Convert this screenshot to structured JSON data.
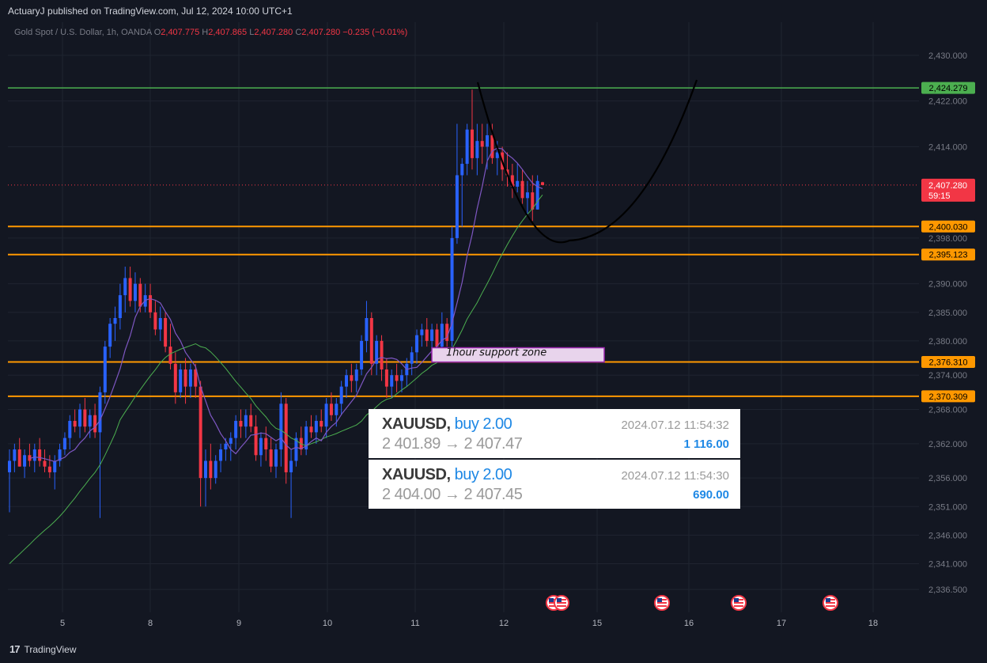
{
  "header": {
    "published_text": "ActuaryJ published on TradingView.com, Jul 12, 2024 10:00 UTC+1"
  },
  "legend": {
    "symbol": "Gold Spot / U.S. Dollar, 1h, OANDA",
    "o_key": "O",
    "o_val": "2,407.775",
    "h_key": "H",
    "h_val": "2,407.865",
    "l_key": "L",
    "l_val": "2,407.280",
    "c_key": "C",
    "c_val": "2,407.280",
    "change": "−0.235 (−0.01%)"
  },
  "footer": {
    "brand": "TradingView"
  },
  "trades": [
    {
      "symbol": "XAUUSD,",
      "side": "buy 2.00",
      "prices": "2 401.89 → 2 407.47",
      "timestamp": "2024.07.12 11:54:32",
      "profit": "1 116.00"
    },
    {
      "symbol": "XAUUSD,",
      "side": "buy 2.00",
      "prices": "2 404.00 → 2 407.45",
      "timestamp": "2024.07.12 11:54:30",
      "profit": "690.00"
    }
  ],
  "colors": {
    "background": "#131722",
    "up": "#2962ff",
    "down": "#f23645",
    "orange_level": "#ff9800",
    "green_level": "#4caf50",
    "ma_fast": "#7e57c2",
    "ma_slow": "#4caf50",
    "grid": "#1f2430"
  },
  "chart_data": {
    "type": "candlestick",
    "title": "Gold Spot / U.S. Dollar, 1h, OANDA",
    "xlabel": "",
    "ylabel": "",
    "ylim": [
      2334,
      2437
    ],
    "y_ticks": [
      "2,430.000",
      "2,422.000",
      "2,414.000",
      "2,398.000",
      "2,390.000",
      "2,385.000",
      "2,380.000",
      "2,374.000",
      "2,368.000",
      "2,362.000",
      "2,356.000",
      "2,351.000",
      "2,346.000",
      "2,341.000",
      "2,336.500"
    ],
    "x_ticks": [
      "5",
      "8",
      "9",
      "10",
      "11",
      "12",
      "15",
      "16",
      "17",
      "18"
    ],
    "levels": [
      {
        "label": "2,424.279",
        "value": 2424.279,
        "color": "#4caf50"
      },
      {
        "label": "2,400.030",
        "value": 2400.03,
        "color": "#ff9800"
      },
      {
        "label": "2,395.123",
        "value": 2395.123,
        "color": "#ff9800"
      },
      {
        "label": "2,376.310",
        "value": 2376.31,
        "color": "#ff9800"
      },
      {
        "label": "2,370.309",
        "value": 2370.309,
        "color": "#ff9800"
      }
    ],
    "last_price": {
      "label": "2,407.280",
      "value": 2407.28,
      "countdown": "59:15"
    },
    "support_zone": {
      "label": "1hour support zone",
      "low": 2376.3,
      "high": 2378.8
    },
    "candles": [
      {
        "o": 2357,
        "h": 2361,
        "l": 2350,
        "c": 2359
      },
      {
        "o": 2359,
        "h": 2362,
        "l": 2357,
        "c": 2361
      },
      {
        "o": 2361,
        "h": 2363,
        "l": 2358,
        "c": 2358
      },
      {
        "o": 2358,
        "h": 2361,
        "l": 2356,
        "c": 2360
      },
      {
        "o": 2360,
        "h": 2362,
        "l": 2358,
        "c": 2359
      },
      {
        "o": 2359,
        "h": 2362,
        "l": 2357,
        "c": 2361
      },
      {
        "o": 2361,
        "h": 2363,
        "l": 2358,
        "c": 2359
      },
      {
        "o": 2359,
        "h": 2361,
        "l": 2357,
        "c": 2358
      },
      {
        "o": 2358,
        "h": 2360,
        "l": 2356,
        "c": 2357
      },
      {
        "o": 2357,
        "h": 2360,
        "l": 2354,
        "c": 2359
      },
      {
        "o": 2359,
        "h": 2362,
        "l": 2358,
        "c": 2361
      },
      {
        "o": 2361,
        "h": 2364,
        "l": 2360,
        "c": 2363
      },
      {
        "o": 2363,
        "h": 2367,
        "l": 2361,
        "c": 2366
      },
      {
        "o": 2366,
        "h": 2368,
        "l": 2364,
        "c": 2365
      },
      {
        "o": 2365,
        "h": 2369,
        "l": 2363,
        "c": 2368
      },
      {
        "o": 2368,
        "h": 2370,
        "l": 2364,
        "c": 2365
      },
      {
        "o": 2365,
        "h": 2368,
        "l": 2363,
        "c": 2367
      },
      {
        "o": 2367,
        "h": 2369,
        "l": 2363,
        "c": 2364
      },
      {
        "o": 2364,
        "h": 2372,
        "l": 2349,
        "c": 2371
      },
      {
        "o": 2371,
        "h": 2380,
        "l": 2369,
        "c": 2379
      },
      {
        "o": 2379,
        "h": 2384,
        "l": 2377,
        "c": 2383
      },
      {
        "o": 2383,
        "h": 2386,
        "l": 2380,
        "c": 2384
      },
      {
        "o": 2384,
        "h": 2390,
        "l": 2382,
        "c": 2388
      },
      {
        "o": 2388,
        "h": 2393,
        "l": 2385,
        "c": 2391
      },
      {
        "o": 2391,
        "h": 2393,
        "l": 2386,
        "c": 2387
      },
      {
        "o": 2387,
        "h": 2392,
        "l": 2385,
        "c": 2390
      },
      {
        "o": 2390,
        "h": 2391,
        "l": 2385,
        "c": 2386
      },
      {
        "o": 2386,
        "h": 2390,
        "l": 2385,
        "c": 2388
      },
      {
        "o": 2388,
        "h": 2390,
        "l": 2384,
        "c": 2385
      },
      {
        "o": 2385,
        "h": 2387,
        "l": 2381,
        "c": 2382
      },
      {
        "o": 2382,
        "h": 2386,
        "l": 2380,
        "c": 2384
      },
      {
        "o": 2384,
        "h": 2385,
        "l": 2378,
        "c": 2379
      },
      {
        "o": 2379,
        "h": 2383,
        "l": 2375,
        "c": 2376
      },
      {
        "o": 2376,
        "h": 2378,
        "l": 2369,
        "c": 2371
      },
      {
        "o": 2371,
        "h": 2376,
        "l": 2370,
        "c": 2375
      },
      {
        "o": 2375,
        "h": 2377,
        "l": 2369,
        "c": 2372
      },
      {
        "o": 2372,
        "h": 2376,
        "l": 2370,
        "c": 2375
      },
      {
        "o": 2375,
        "h": 2376,
        "l": 2370,
        "c": 2372
      },
      {
        "o": 2372,
        "h": 2373,
        "l": 2351,
        "c": 2356
      },
      {
        "o": 2356,
        "h": 2361,
        "l": 2351,
        "c": 2359
      },
      {
        "o": 2359,
        "h": 2362,
        "l": 2354,
        "c": 2356
      },
      {
        "o": 2356,
        "h": 2360,
        "l": 2355,
        "c": 2359
      },
      {
        "o": 2359,
        "h": 2362,
        "l": 2357,
        "c": 2361
      },
      {
        "o": 2361,
        "h": 2363,
        "l": 2359,
        "c": 2362
      },
      {
        "o": 2362,
        "h": 2364,
        "l": 2359,
        "c": 2363
      },
      {
        "o": 2363,
        "h": 2367,
        "l": 2361,
        "c": 2366
      },
      {
        "o": 2366,
        "h": 2368,
        "l": 2363,
        "c": 2365
      },
      {
        "o": 2365,
        "h": 2368,
        "l": 2363,
        "c": 2367
      },
      {
        "o": 2367,
        "h": 2369,
        "l": 2364,
        "c": 2365
      },
      {
        "o": 2365,
        "h": 2367,
        "l": 2359,
        "c": 2360
      },
      {
        "o": 2360,
        "h": 2364,
        "l": 2358,
        "c": 2363
      },
      {
        "o": 2363,
        "h": 2365,
        "l": 2359,
        "c": 2361
      },
      {
        "o": 2361,
        "h": 2363,
        "l": 2357,
        "c": 2358
      },
      {
        "o": 2358,
        "h": 2362,
        "l": 2356,
        "c": 2361
      },
      {
        "o": 2361,
        "h": 2371,
        "l": 2358,
        "c": 2369
      },
      {
        "o": 2369,
        "h": 2370,
        "l": 2355,
        "c": 2357
      },
      {
        "o": 2357,
        "h": 2361,
        "l": 2349,
        "c": 2359
      },
      {
        "o": 2359,
        "h": 2364,
        "l": 2358,
        "c": 2363
      },
      {
        "o": 2363,
        "h": 2365,
        "l": 2360,
        "c": 2361
      },
      {
        "o": 2361,
        "h": 2366,
        "l": 2360,
        "c": 2365
      },
      {
        "o": 2365,
        "h": 2367,
        "l": 2363,
        "c": 2364
      },
      {
        "o": 2364,
        "h": 2367,
        "l": 2362,
        "c": 2366
      },
      {
        "o": 2366,
        "h": 2368,
        "l": 2364,
        "c": 2365
      },
      {
        "o": 2365,
        "h": 2370,
        "l": 2363,
        "c": 2369
      },
      {
        "o": 2369,
        "h": 2371,
        "l": 2366,
        "c": 2367
      },
      {
        "o": 2367,
        "h": 2370,
        "l": 2365,
        "c": 2369
      },
      {
        "o": 2369,
        "h": 2373,
        "l": 2367,
        "c": 2372
      },
      {
        "o": 2372,
        "h": 2375,
        "l": 2370,
        "c": 2374
      },
      {
        "o": 2374,
        "h": 2376,
        "l": 2371,
        "c": 2373
      },
      {
        "o": 2373,
        "h": 2376,
        "l": 2371,
        "c": 2375
      },
      {
        "o": 2375,
        "h": 2381,
        "l": 2374,
        "c": 2380
      },
      {
        "o": 2380,
        "h": 2387,
        "l": 2378,
        "c": 2384
      },
      {
        "o": 2384,
        "h": 2385,
        "l": 2374,
        "c": 2376
      },
      {
        "o": 2376,
        "h": 2381,
        "l": 2374,
        "c": 2380
      },
      {
        "o": 2380,
        "h": 2381,
        "l": 2373,
        "c": 2375
      },
      {
        "o": 2375,
        "h": 2377,
        "l": 2370,
        "c": 2372
      },
      {
        "o": 2372,
        "h": 2375,
        "l": 2370,
        "c": 2374
      },
      {
        "o": 2374,
        "h": 2376,
        "l": 2371,
        "c": 2373
      },
      {
        "o": 2373,
        "h": 2375,
        "l": 2371,
        "c": 2374
      },
      {
        "o": 2374,
        "h": 2377,
        "l": 2372,
        "c": 2376
      },
      {
        "o": 2376,
        "h": 2379,
        "l": 2374,
        "c": 2378
      },
      {
        "o": 2378,
        "h": 2382,
        "l": 2376,
        "c": 2381
      },
      {
        "o": 2381,
        "h": 2383,
        "l": 2379,
        "c": 2382
      },
      {
        "o": 2382,
        "h": 2384,
        "l": 2379,
        "c": 2380
      },
      {
        "o": 2380,
        "h": 2383,
        "l": 2378,
        "c": 2382
      },
      {
        "o": 2382,
        "h": 2383,
        "l": 2378,
        "c": 2379
      },
      {
        "o": 2379,
        "h": 2385,
        "l": 2377,
        "c": 2383
      },
      {
        "o": 2383,
        "h": 2384,
        "l": 2379,
        "c": 2380
      },
      {
        "o": 2380,
        "h": 2400,
        "l": 2379,
        "c": 2398
      },
      {
        "o": 2398,
        "h": 2418,
        "l": 2397,
        "c": 2409
      },
      {
        "o": 2409,
        "h": 2412,
        "l": 2400,
        "c": 2411
      },
      {
        "o": 2411,
        "h": 2418,
        "l": 2409,
        "c": 2417
      },
      {
        "o": 2417,
        "h": 2424,
        "l": 2410,
        "c": 2412
      },
      {
        "o": 2412,
        "h": 2418,
        "l": 2409,
        "c": 2415
      },
      {
        "o": 2415,
        "h": 2418,
        "l": 2411,
        "c": 2414
      },
      {
        "o": 2414,
        "h": 2418,
        "l": 2410,
        "c": 2416
      },
      {
        "o": 2416,
        "h": 2418,
        "l": 2411,
        "c": 2412
      },
      {
        "o": 2412,
        "h": 2415,
        "l": 2409,
        "c": 2413
      },
      {
        "o": 2413,
        "h": 2414,
        "l": 2408,
        "c": 2410
      },
      {
        "o": 2410,
        "h": 2413,
        "l": 2407,
        "c": 2409
      },
      {
        "o": 2409,
        "h": 2411,
        "l": 2405,
        "c": 2407
      },
      {
        "o": 2407,
        "h": 2411,
        "l": 2406,
        "c": 2408
      },
      {
        "o": 2408,
        "h": 2410,
        "l": 2404,
        "c": 2405
      },
      {
        "o": 2405,
        "h": 2408,
        "l": 2402,
        "c": 2406
      },
      {
        "o": 2406,
        "h": 2409,
        "l": 2401,
        "c": 2403
      },
      {
        "o": 2403,
        "h": 2409,
        "l": 2403,
        "c": 2408
      },
      {
        "o": 2407.775,
        "h": 2407.865,
        "l": 2407.28,
        "c": 2407.28
      }
    ]
  }
}
